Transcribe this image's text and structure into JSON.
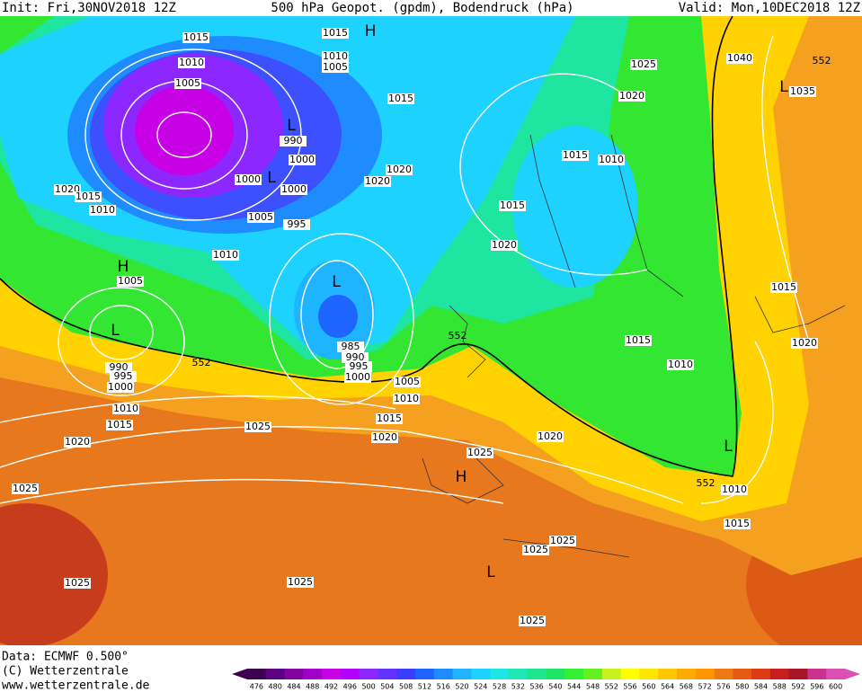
{
  "header": {
    "init": "Init: Fri,30NOV2018 12Z",
    "title": "500 hPa Geopot. (gpdm), Bodendruck (hPa)",
    "valid": "Valid: Mon,10DEC2018 12Z"
  },
  "footer": {
    "data": "Data: ECMWF  0.500°",
    "copyright": "(C) Wetterzentrale",
    "url": "www.wetterzentrale.de"
  },
  "colorbar": {
    "labels": [
      476,
      480,
      484,
      488,
      492,
      496,
      500,
      504,
      508,
      512,
      516,
      520,
      524,
      528,
      532,
      536,
      540,
      544,
      548,
      552,
      556,
      560,
      564,
      568,
      572,
      576,
      580,
      584,
      588,
      592,
      596,
      600
    ],
    "colors": [
      "#3c0050",
      "#5a0080",
      "#8000a0",
      "#a000c8",
      "#c800e6",
      "#b400ff",
      "#8c28ff",
      "#6432ff",
      "#3c3cff",
      "#1e64ff",
      "#1e8cff",
      "#1eb4ff",
      "#1ed2ff",
      "#1ee6e6",
      "#1ee6b4",
      "#1ee68c",
      "#1ee664",
      "#32f032",
      "#64f01e",
      "#c8f01e",
      "#ffff00",
      "#ffe600",
      "#ffc800",
      "#ffaa00",
      "#ff9600",
      "#f07814",
      "#e65a14",
      "#dc3c14",
      "#c81e1e",
      "#aa1428",
      "#c8328c",
      "#dc50b4"
    ]
  },
  "isobar_labels": [
    1015,
    1015,
    1010,
    1010,
    1005,
    1005,
    1025,
    1020,
    1015,
    1040,
    1035,
    990,
    1000,
    1000,
    1000,
    1020,
    1020,
    1015,
    1010,
    1020,
    1015,
    1010,
    1005,
    995,
    1015,
    1020,
    1010,
    1005,
    1015,
    1020,
    1015,
    1010,
    985,
    990,
    995,
    1000,
    1005,
    1010,
    990,
    995,
    1000,
    1010,
    1015,
    1025,
    1015,
    1020,
    1020,
    1025,
    1020,
    1025,
    1010,
    1015,
    1025,
    1025,
    1025,
    1025,
    1025
  ],
  "contour_labels": [
    552,
    552,
    552,
    552
  ],
  "pressure_centers": [
    "H",
    "H",
    "L",
    "L",
    "L",
    "L",
    "L",
    "L",
    "H",
    "L"
  ]
}
